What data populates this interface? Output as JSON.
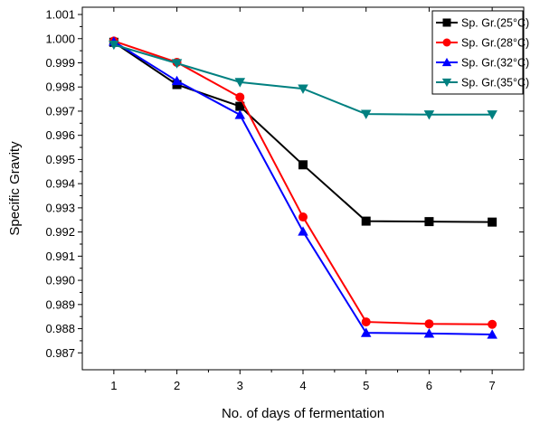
{
  "chart_data": {
    "type": "line",
    "title": "",
    "xlabel": "No. of days of fermentation",
    "ylabel": "Specific Gravity",
    "x": [
      1,
      2,
      3,
      4,
      5,
      6,
      7
    ],
    "xlim": [
      0.5,
      7.5
    ],
    "ylim": [
      0.9863,
      1.0013
    ],
    "xticks": [
      {
        "value": 1,
        "label": "1"
      },
      {
        "value": 2,
        "label": "2"
      },
      {
        "value": 3,
        "label": "3"
      },
      {
        "value": 4,
        "label": "4"
      },
      {
        "value": 5,
        "label": "5"
      },
      {
        "value": 6,
        "label": "6"
      },
      {
        "value": 7,
        "label": "7"
      }
    ],
    "yticks": [
      {
        "value": 0.987,
        "label": "0.987"
      },
      {
        "value": 0.988,
        "label": "0.988"
      },
      {
        "value": 0.989,
        "label": "0.989"
      },
      {
        "value": 0.99,
        "label": "0.990"
      },
      {
        "value": 0.991,
        "label": "0.991"
      },
      {
        "value": 0.992,
        "label": "0.992"
      },
      {
        "value": 0.993,
        "label": "0.993"
      },
      {
        "value": 0.994,
        "label": "0.994"
      },
      {
        "value": 0.995,
        "label": "0.995"
      },
      {
        "value": 0.996,
        "label": "0.996"
      },
      {
        "value": 0.997,
        "label": "0.997"
      },
      {
        "value": 0.998,
        "label": "0.998"
      },
      {
        "value": 0.999,
        "label": "0.999"
      },
      {
        "value": 1.0,
        "label": "1.000"
      },
      {
        "value": 1.001,
        "label": "1.001"
      }
    ],
    "grid": false,
    "legend": "top-right",
    "series": [
      {
        "name": "Sp. Gr.(25°C)",
        "color": "#000000",
        "marker": "square",
        "values": [
          0.99985,
          0.9981,
          0.9972,
          0.99478,
          0.99245,
          0.99243,
          0.99241
        ]
      },
      {
        "name": "Sp. Gr.(28°C)",
        "color": "#ff0000",
        "marker": "circle",
        "values": [
          0.9999,
          0.99902,
          0.99758,
          0.99262,
          0.98828,
          0.9882,
          0.98818
        ]
      },
      {
        "name": "Sp. Gr.(32°C)",
        "color": "#0000ff",
        "marker": "triangle-up",
        "values": [
          0.99988,
          0.99825,
          0.99685,
          0.99202,
          0.98783,
          0.9878,
          0.98776
        ]
      },
      {
        "name": "Sp. Gr.(35°C)",
        "color": "#008080",
        "marker": "triangle-down",
        "values": [
          0.99975,
          0.99898,
          0.9982,
          0.99793,
          0.99688,
          0.99686,
          0.99686
        ]
      }
    ]
  }
}
